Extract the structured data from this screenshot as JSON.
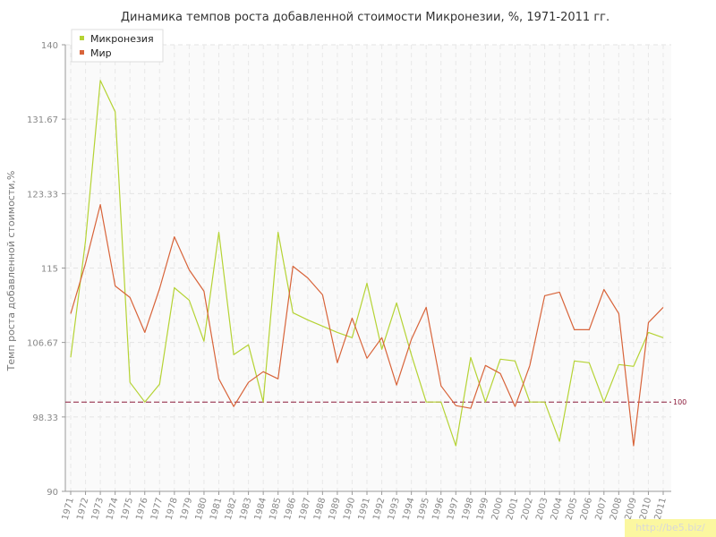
{
  "chart_data": {
    "type": "line",
    "title": "Динамика темпов роста добавленной стоимости Микронезии, %, 1971-2011 гг.",
    "xlabel": "",
    "ylabel": "Темп роста добавленной стоимости,%",
    "ylim": [
      90,
      140
    ],
    "y_ticks": [
      "90",
      "98.33",
      "106.67",
      "115",
      "123.33",
      "131.67",
      "140"
    ],
    "grid": true,
    "legend_position": "top-left",
    "reference_line": {
      "value": 100,
      "label": "100",
      "color": "#8b1a3a"
    },
    "categories": [
      "1971",
      "1972",
      "1973",
      "1974",
      "1975",
      "1976",
      "1977",
      "1978",
      "1979",
      "1980",
      "1981",
      "1982",
      "1983",
      "1984",
      "1985",
      "1986",
      "1987",
      "1988",
      "1989",
      "1990",
      "1991",
      "1992",
      "1993",
      "1994",
      "1995",
      "1996",
      "1997",
      "1998",
      "1999",
      "2000",
      "2001",
      "2002",
      "2003",
      "2004",
      "2005",
      "2006",
      "2007",
      "2008",
      "2009",
      "2010",
      "2011"
    ],
    "series": [
      {
        "name": "Микронезия",
        "color": "#b5d334",
        "values": [
          105.0,
          118.0,
          136.0,
          132.5,
          102.2,
          100.0,
          102.0,
          112.8,
          111.4,
          106.8,
          119.0,
          105.3,
          106.4,
          100.0,
          119.0,
          110.0,
          109.2,
          108.5,
          107.8,
          107.2,
          113.3,
          105.9,
          111.1,
          105.3,
          100.0,
          100.0,
          95.1,
          105.0,
          100.0,
          104.8,
          104.6,
          100.0,
          100.0,
          95.6,
          104.6,
          104.4,
          100.0,
          104.2,
          104.0,
          107.8,
          107.2
        ]
      },
      {
        "name": "Мир",
        "color": "#d8643a",
        "values": [
          109.9,
          115.5,
          122.1,
          113.0,
          111.7,
          107.8,
          112.7,
          118.5,
          114.8,
          112.4,
          102.6,
          99.5,
          102.2,
          103.4,
          102.6,
          115.2,
          113.9,
          112.0,
          104.4,
          109.4,
          104.9,
          107.2,
          101.9,
          107.0,
          110.6,
          101.8,
          99.6,
          99.3,
          104.1,
          103.2,
          99.5,
          104.1,
          111.9,
          112.3,
          108.1,
          108.1,
          112.6,
          109.9,
          95.1,
          108.9,
          110.6
        ]
      }
    ]
  },
  "watermark": "http://be5.biz/"
}
